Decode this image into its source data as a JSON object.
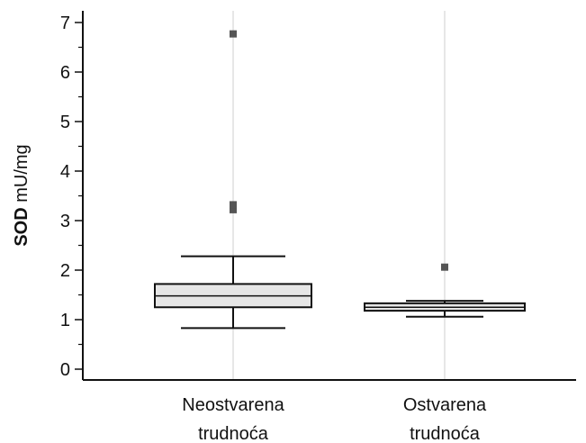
{
  "chart_data": {
    "type": "box",
    "ylabel": {
      "bold": "SOD",
      "normal": "mU/mg"
    },
    "xlabel": "",
    "ylim": [
      -0.25,
      7.2
    ],
    "yticks": [
      0,
      1,
      2,
      3,
      4,
      5,
      6,
      7
    ],
    "grid": {
      "vertical": true,
      "horizontal": false
    },
    "categories": [
      {
        "lines": [
          "Neostvarena",
          "trudnoća"
        ]
      },
      {
        "lines": [
          "Ostvarena",
          "trudnoća"
        ]
      }
    ],
    "boxes": [
      {
        "whisker_low": 0.83,
        "q1": 1.25,
        "median": 1.48,
        "q3": 1.72,
        "whisker_high": 2.28,
        "outliers": [
          3.22,
          3.32,
          6.77
        ]
      },
      {
        "whisker_low": 1.06,
        "q1": 1.18,
        "median": 1.25,
        "q3": 1.33,
        "whisker_high": 1.38,
        "outliers": [
          2.06
        ]
      }
    ],
    "colors": {
      "box_fill": "#e6e6e6",
      "box_stroke": "#111111",
      "outlier": "#555555",
      "axis": "#111111",
      "grid": "#cfcfcf"
    }
  }
}
